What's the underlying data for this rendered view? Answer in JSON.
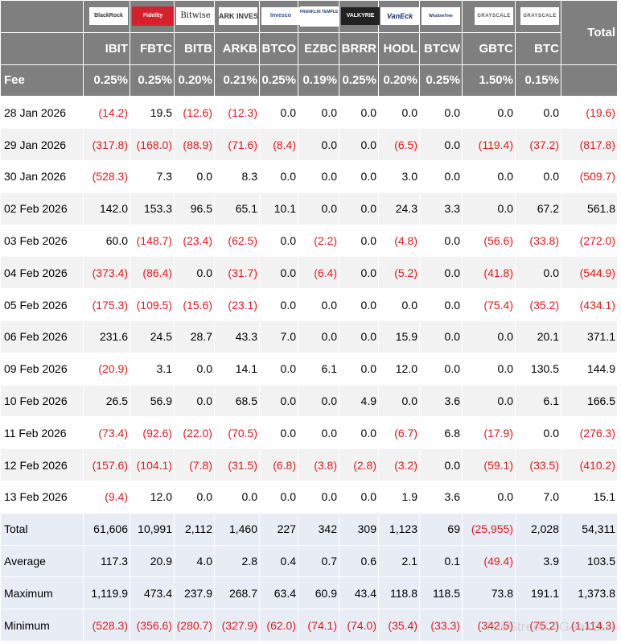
{
  "header": {
    "total_label": "Total",
    "fee_label": "Fee",
    "issuers": [
      {
        "logo": "BlackRock",
        "ticker": "IBIT",
        "fee": "0.25%"
      },
      {
        "logo": "Fidelity",
        "ticker": "FBTC",
        "fee": "0.25%"
      },
      {
        "logo": "Bitwise",
        "ticker": "BITB",
        "fee": "0.20%"
      },
      {
        "logo": "ARK INVEST",
        "ticker": "ARKB",
        "fee": "0.21%"
      },
      {
        "logo": "Invesco",
        "ticker": "BTCO",
        "fee": "0.25%"
      },
      {
        "logo": "FRANKLIN TEMPLETON",
        "ticker": "EZBC",
        "fee": "0.19%"
      },
      {
        "logo": "VALKYRIE",
        "ticker": "BRRR",
        "fee": "0.25%"
      },
      {
        "logo": "VanEck",
        "ticker": "HODL",
        "fee": "0.20%"
      },
      {
        "logo": "WisdomTree",
        "ticker": "BTCW",
        "fee": "0.25%"
      },
      {
        "logo": "GRAYSCALE",
        "ticker": "GBTC",
        "fee": "1.50%"
      },
      {
        "logo": "GRAYSCALE",
        "ticker": "BTC",
        "fee": "0.15%"
      }
    ]
  },
  "rows": [
    {
      "date": "28 Jan 2026",
      "values": [
        "(14.2)",
        "19.5",
        "(12.6)",
        "(12.3)",
        "0.0",
        "0.0",
        "0.0",
        "0.0",
        "0.0",
        "0.0",
        "0.0",
        "(19.6)"
      ]
    },
    {
      "date": "29 Jan 2026",
      "values": [
        "(317.8)",
        "(168.0)",
        "(88.9)",
        "(71.6)",
        "(8.4)",
        "0.0",
        "0.0",
        "(6.5)",
        "0.0",
        "(119.4)",
        "(37.2)",
        "(817.8)"
      ]
    },
    {
      "date": "30 Jan 2026",
      "values": [
        "(528.3)",
        "7.3",
        "0.0",
        "8.3",
        "0.0",
        "0.0",
        "0.0",
        "3.0",
        "0.0",
        "0.0",
        "0.0",
        "(509.7)"
      ]
    },
    {
      "date": "02 Feb 2026",
      "values": [
        "142.0",
        "153.3",
        "96.5",
        "65.1",
        "10.1",
        "0.0",
        "0.0",
        "24.3",
        "3.3",
        "0.0",
        "67.2",
        "561.8"
      ]
    },
    {
      "date": "03 Feb 2026",
      "values": [
        "60.0",
        "(148.7)",
        "(23.4)",
        "(62.5)",
        "0.0",
        "(2.2)",
        "0.0",
        "(4.8)",
        "0.0",
        "(56.6)",
        "(33.8)",
        "(272.0)"
      ]
    },
    {
      "date": "04 Feb 2026",
      "values": [
        "(373.4)",
        "(86.4)",
        "0.0",
        "(31.7)",
        "0.0",
        "(6.4)",
        "0.0",
        "(5.2)",
        "0.0",
        "(41.8)",
        "0.0",
        "(544.9)"
      ]
    },
    {
      "date": "05 Feb 2026",
      "values": [
        "(175.3)",
        "(109.5)",
        "(15.6)",
        "(23.1)",
        "0.0",
        "0.0",
        "0.0",
        "0.0",
        "0.0",
        "(75.4)",
        "(35.2)",
        "(434.1)"
      ]
    },
    {
      "date": "06 Feb 2026",
      "values": [
        "231.6",
        "24.5",
        "28.7",
        "43.3",
        "7.0",
        "0.0",
        "0.0",
        "15.9",
        "0.0",
        "0.0",
        "20.1",
        "371.1"
      ]
    },
    {
      "date": "09 Feb 2026",
      "values": [
        "(20.9)",
        "3.1",
        "0.0",
        "14.1",
        "0.0",
        "6.1",
        "0.0",
        "12.0",
        "0.0",
        "0.0",
        "130.5",
        "144.9"
      ]
    },
    {
      "date": "10 Feb 2026",
      "values": [
        "26.5",
        "56.9",
        "0.0",
        "68.5",
        "0.0",
        "0.0",
        "4.9",
        "0.0",
        "3.6",
        "0.0",
        "6.1",
        "166.5"
      ]
    },
    {
      "date": "11 Feb 2026",
      "values": [
        "(73.4)",
        "(92.6)",
        "(22.0)",
        "(70.5)",
        "0.0",
        "0.0",
        "0.0",
        "(6.7)",
        "6.8",
        "(17.9)",
        "0.0",
        "(276.3)"
      ]
    },
    {
      "date": "12 Feb 2026",
      "values": [
        "(157.6)",
        "(104.1)",
        "(7.8)",
        "(31.5)",
        "(6.8)",
        "(3.8)",
        "(2.8)",
        "(3.2)",
        "0.0",
        "(59.1)",
        "(33.5)",
        "(410.2)"
      ]
    },
    {
      "date": "13 Feb 2026",
      "values": [
        "(9.4)",
        "12.0",
        "0.0",
        "0.0",
        "0.0",
        "0.0",
        "0.0",
        "1.9",
        "3.6",
        "0.0",
        "7.0",
        "15.1"
      ]
    }
  ],
  "summary": [
    {
      "label": "Total",
      "values": [
        "61,606",
        "10,991",
        "2,112",
        "1,460",
        "227",
        "342",
        "309",
        "1,123",
        "69",
        "(25,955)",
        "2,028",
        "54,311"
      ]
    },
    {
      "label": "Average",
      "values": [
        "117.3",
        "20.9",
        "4.0",
        "2.8",
        "0.4",
        "0.7",
        "0.6",
        "2.1",
        "0.1",
        "(49.4)",
        "3.9",
        "103.5"
      ]
    },
    {
      "label": "Maximum",
      "values": [
        "1,119.9",
        "473.4",
        "237.9",
        "268.7",
        "63.4",
        "60.9",
        "43.4",
        "118.8",
        "118.5",
        "73.8",
        "191.1",
        "1,373.8"
      ]
    },
    {
      "label": "Minimum",
      "values": [
        "(528.3)",
        "(356.6)",
        "(280.7)",
        "(327.9)",
        "(62.0)",
        "(74.1)",
        "(74.0)",
        "(35.4)",
        "(33.3)",
        "(342.5)",
        "(75.2)",
        "(1,114.3)"
      ]
    }
  ],
  "watermark": "TheStreetOfGeekBull",
  "colors": {
    "header_bg": "#7f7f7f",
    "negative": "#e01a1a",
    "summary_bg": "#e8ecf5",
    "stripe": "#f2f2f2"
  }
}
